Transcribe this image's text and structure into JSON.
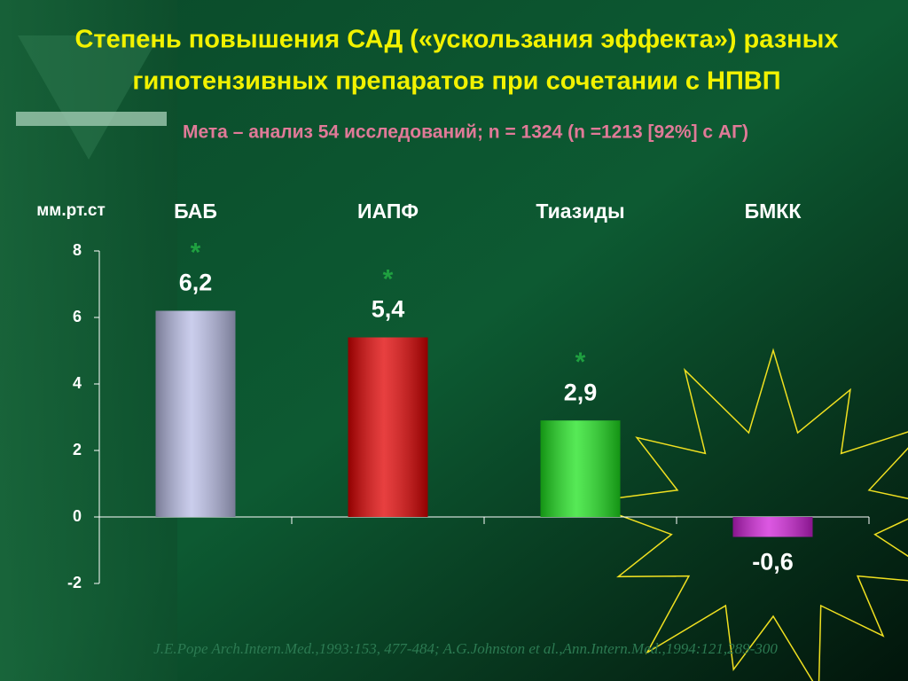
{
  "chart_data": {
    "type": "bar",
    "title": [
      "Степень повышения САД («ускользания эффекта») разных",
      "гипотензивных препаратов при сочетании с НПВП"
    ],
    "subtitle": "Мета – анализ 54 исследований;  n = 1324 (n =1213 [92%] с АГ)",
    "y_label": "мм.рт.ст",
    "categories": [
      "БАБ",
      "ИАПФ",
      "Тиазиды",
      "БМКК"
    ],
    "values": [
      6.2,
      5.4,
      2.9,
      -0.6
    ],
    "value_labels": [
      "6,2",
      "5,4",
      "2,9",
      "-0,6"
    ],
    "colors": [
      "#b9bde6",
      "#e00000",
      "#1ee21e",
      "#d020d8"
    ],
    "significance": [
      "*",
      "*",
      "*",
      null
    ],
    "ylim": [
      -2,
      8
    ],
    "yticks": [
      -2,
      0,
      2,
      4,
      6,
      8
    ],
    "footnote": "J.E.Pope Arch.Intern.Med.,1993:153, 477-484; A.G.Johnston et al.,Ann.Intern.Med.,1994:121,289-300"
  }
}
